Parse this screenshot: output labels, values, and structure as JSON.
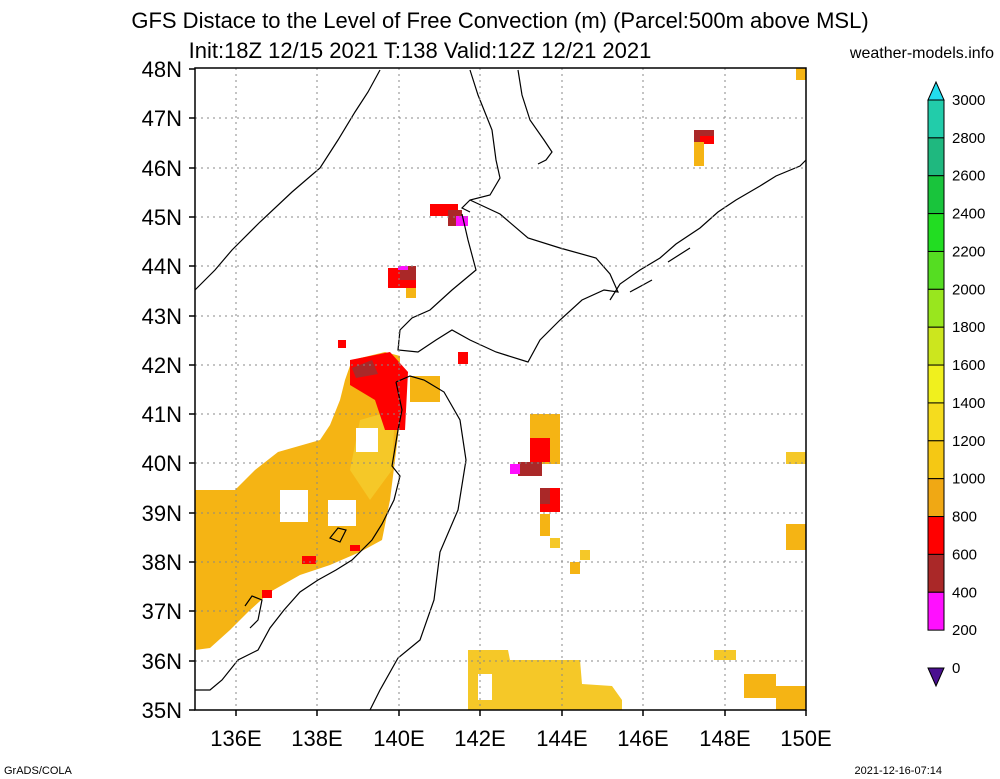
{
  "title": {
    "line1": "GFS Distace to the Level of Free Convection (m) (Parcel:500m above MSL)",
    "line2": "Init:18Z 12/15 2021 T:138 Valid:12Z 12/21 2021"
  },
  "source_site": "weather-models.info",
  "footer": {
    "left": "GrADS/COLA",
    "right": "2021-12-16-07:14"
  },
  "map": {
    "lat_labels": [
      "48N",
      "47N",
      "46N",
      "45N",
      "44N",
      "43N",
      "42N",
      "41N",
      "40N",
      "39N",
      "38N",
      "37N",
      "36N",
      "35N"
    ],
    "lon_labels": [
      "136E",
      "138E",
      "140E",
      "142E",
      "144E",
      "146E",
      "148E",
      "150E"
    ]
  },
  "colorbar": {
    "labels": [
      "3000",
      "2800",
      "2600",
      "2400",
      "2200",
      "2000",
      "1800",
      "1600",
      "1400",
      "1200",
      "1000",
      "800",
      "600",
      "400",
      "200",
      "0"
    ],
    "colors": [
      "#22ddee",
      "#22ccaa",
      "#1fb87f",
      "#19c43c",
      "#22dd22",
      "#55dd22",
      "#99e61e",
      "#cce61e",
      "#f0f01e",
      "#f5dc1e",
      "#f5c814",
      "#f0a814",
      "#ff0000",
      "#aa2828",
      "#ff10ff",
      "#4a1090"
    ]
  }
}
